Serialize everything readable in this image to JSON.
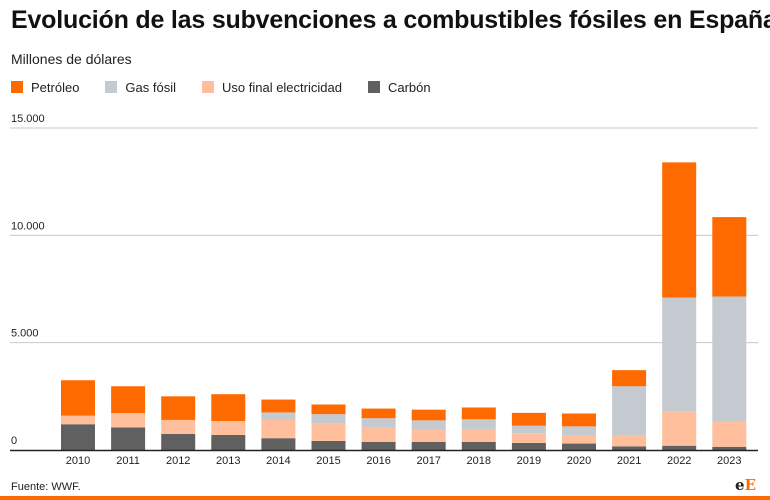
{
  "header": {
    "title": "Evolución de las subvenciones a combustibles fósiles en España",
    "subtitle": "Millones de dólares"
  },
  "footer": {
    "source": "Fuente: WWF.",
    "logo_part1": "e",
    "logo_part2": "E"
  },
  "colors": {
    "brand": "#ff6a00",
    "grid": "#c8c8c8",
    "axis": "#222222"
  },
  "chart_data": {
    "type": "bar",
    "stacked": true,
    "categories": [
      "2010",
      "2011",
      "2012",
      "2013",
      "2014",
      "2015",
      "2016",
      "2017",
      "2018",
      "2019",
      "2020",
      "2021",
      "2022",
      "2023"
    ],
    "series": [
      {
        "name": "Carbón",
        "color": "#606060",
        "values": [
          1200,
          1050,
          750,
          700,
          550,
          420,
          380,
          380,
          380,
          330,
          300,
          170,
          200,
          150
        ]
      },
      {
        "name": "Uso final electricidad",
        "color": "#ffbf9c",
        "values": [
          400,
          650,
          650,
          650,
          850,
          800,
          650,
          550,
          600,
          450,
          400,
          500,
          1600,
          1200
        ]
      },
      {
        "name": "Gas fósil",
        "color": "#c5cad0",
        "values": [
          0,
          20,
          0,
          0,
          350,
          450,
          450,
          450,
          450,
          350,
          400,
          2300,
          5300,
          5800
        ]
      },
      {
        "name": "Petróleo",
        "color": "#ff6a00",
        "values": [
          1650,
          1250,
          1100,
          1250,
          600,
          450,
          450,
          500,
          550,
          600,
          600,
          750,
          6300,
          3700
        ]
      }
    ],
    "legend_order": [
      "Petróleo",
      "Gas fósil",
      "Uso final electricidad",
      "Carbón"
    ],
    "yticks": [
      {
        "value": 0,
        "label": "0"
      },
      {
        "value": 5000,
        "label": "5.000"
      },
      {
        "value": 10000,
        "label": "10.000"
      },
      {
        "value": 15000,
        "label": "15.000"
      }
    ],
    "ylim": [
      0,
      15000
    ],
    "grid": true,
    "legend_position": "top-left"
  }
}
